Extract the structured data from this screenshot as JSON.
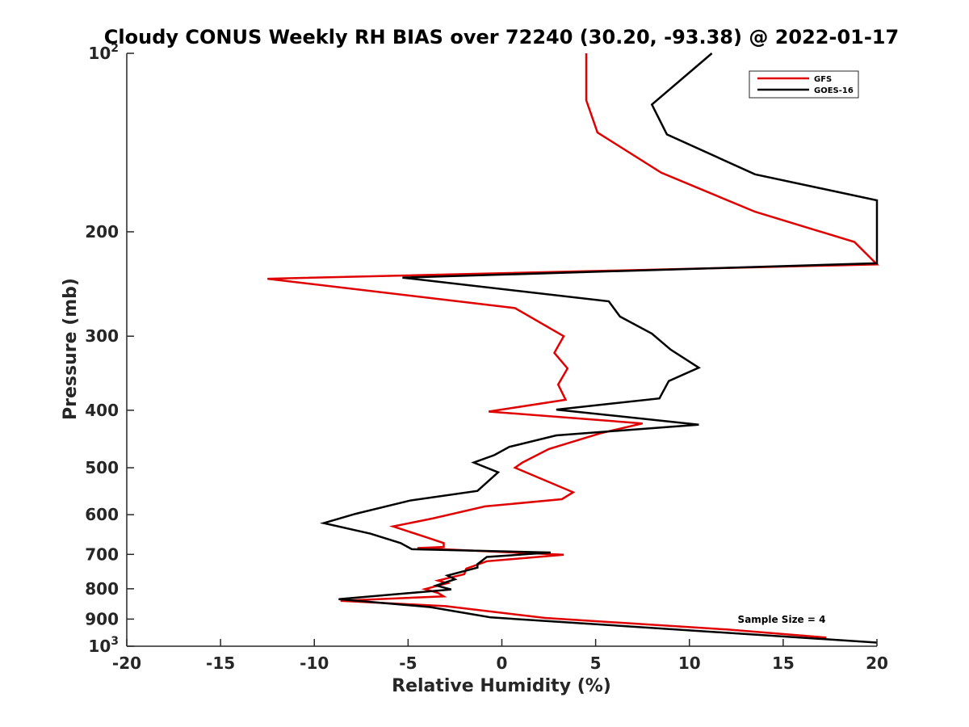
{
  "chart_data": {
    "type": "line",
    "title": "Cloudy CONUS Weekly RH BIAS over 72240 (30.20, -93.38) @ 2022-01-17",
    "xlabel": "Relative Humidity (%)",
    "ylabel": "Pressure (mb)",
    "xlim": [
      -20,
      20
    ],
    "ylim": [
      100,
      1000
    ],
    "yscale": "log",
    "yreversed": true,
    "grid": false,
    "legend_position": "top-right",
    "x_ticks": [
      {
        "value": -20,
        "label": "-20"
      },
      {
        "value": -15,
        "label": "-15"
      },
      {
        "value": -10,
        "label": "-10"
      },
      {
        "value": -5,
        "label": "-5"
      },
      {
        "value": 0,
        "label": "0"
      },
      {
        "value": 5,
        "label": "5"
      },
      {
        "value": 10,
        "label": "10"
      },
      {
        "value": 15,
        "label": "15"
      },
      {
        "value": 20,
        "label": "20"
      }
    ],
    "y_ticks": [
      {
        "value": 200,
        "label": "200"
      },
      {
        "value": 300,
        "label": "300"
      },
      {
        "value": 400,
        "label": "400"
      },
      {
        "value": 500,
        "label": "500"
      },
      {
        "value": 600,
        "label": "600"
      },
      {
        "value": 700,
        "label": "700"
      },
      {
        "value": 800,
        "label": "800"
      },
      {
        "value": 900,
        "label": "900"
      }
    ],
    "y_pow_ticks": [
      {
        "value": 100,
        "base": "10",
        "exp": "2"
      },
      {
        "value": 1000,
        "base": "10",
        "exp": "3"
      }
    ],
    "annotation": "Sample Size = 4",
    "series": [
      {
        "name": "GFS",
        "color": "#e00000",
        "points": [
          [
            4.5,
            100
          ],
          [
            4.5,
            120
          ],
          [
            5.1,
            136
          ],
          [
            8.5,
            159
          ],
          [
            13.5,
            185
          ],
          [
            18.8,
            208
          ],
          [
            20.0,
            227
          ],
          [
            -12.5,
            240
          ],
          [
            0.7,
            269
          ],
          [
            3.3,
            300
          ],
          [
            2.8,
            320
          ],
          [
            3.5,
            340
          ],
          [
            3.0,
            362
          ],
          [
            3.4,
            384
          ],
          [
            -0.7,
            402
          ],
          [
            7.5,
            421
          ],
          [
            5.3,
            437
          ],
          [
            2.5,
            465
          ],
          [
            1.1,
            490
          ],
          [
            0.7,
            500
          ],
          [
            2.6,
            530
          ],
          [
            3.8,
            550
          ],
          [
            3.2,
            565
          ],
          [
            -0.9,
            581
          ],
          [
            -3.7,
            609
          ],
          [
            -5.8,
            628
          ],
          [
            -4.1,
            654
          ],
          [
            -3.1,
            670
          ],
          [
            -3.1,
            680
          ],
          [
            -4.5,
            683
          ],
          [
            3.3,
            701
          ],
          [
            -0.8,
            719
          ],
          [
            -1.9,
            740
          ],
          [
            -2.0,
            756
          ],
          [
            -3.4,
            775
          ],
          [
            -2.9,
            783
          ],
          [
            -4.1,
            801
          ],
          [
            -3.4,
            813
          ],
          [
            -3.1,
            824
          ],
          [
            -8.6,
            838
          ],
          [
            -3.0,
            856
          ],
          [
            2.3,
            896
          ],
          [
            12.0,
            937
          ],
          [
            17.3,
            967
          ]
        ]
      },
      {
        "name": "GOES-16",
        "color": "#000000",
        "points": [
          [
            11.2,
            100
          ],
          [
            8.0,
            122
          ],
          [
            8.8,
            137
          ],
          [
            13.5,
            160
          ],
          [
            20.0,
            177
          ],
          [
            20.0,
            226
          ],
          [
            -5.3,
            239
          ],
          [
            5.7,
            262
          ],
          [
            6.3,
            278
          ],
          [
            8.0,
            297
          ],
          [
            9.0,
            316
          ],
          [
            10.5,
            339
          ],
          [
            8.9,
            357
          ],
          [
            8.4,
            382
          ],
          [
            2.9,
            399
          ],
          [
            10.5,
            423
          ],
          [
            2.9,
            441
          ],
          [
            0.4,
            461
          ],
          [
            -0.4,
            476
          ],
          [
            -1.5,
            490
          ],
          [
            -0.2,
            509
          ],
          [
            -1.3,
            547
          ],
          [
            -4.9,
            568
          ],
          [
            -7.8,
            598
          ],
          [
            -9.5,
            620
          ],
          [
            -7.0,
            646
          ],
          [
            -5.4,
            670
          ],
          [
            -4.8,
            686
          ],
          [
            2.6,
            695
          ],
          [
            -0.8,
            707
          ],
          [
            -1.3,
            727
          ],
          [
            -1.3,
            737
          ],
          [
            -2.9,
            760
          ],
          [
            -2.5,
            771
          ],
          [
            -3.5,
            790
          ],
          [
            -2.7,
            802
          ],
          [
            -8.7,
            833
          ],
          [
            -3.8,
            859
          ],
          [
            -0.6,
            894
          ],
          [
            20.0,
            986
          ]
        ]
      }
    ]
  }
}
